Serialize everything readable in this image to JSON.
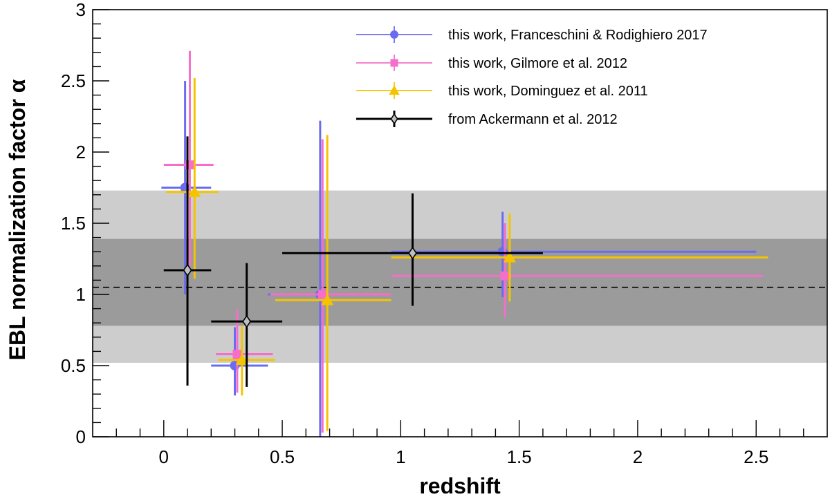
{
  "chart_data": {
    "type": "scatter",
    "title": "",
    "xlabel": "redshift",
    "ylabel": "EBL normalization factor α",
    "xlim": [
      -0.3,
      2.8
    ],
    "ylim": [
      0,
      3
    ],
    "xticks": [
      "0",
      "0.5",
      "1",
      "1.5",
      "2",
      "2.5"
    ],
    "yticks": [
      "0",
      "0.5",
      "1",
      "1.5",
      "2",
      "2.5",
      "3"
    ],
    "legend_position": "top-right",
    "reference_line": {
      "y": 1.05,
      "style": "dashed"
    },
    "bands": [
      {
        "name": "outer band",
        "y_low": 0.52,
        "y_high": 1.73,
        "color": "#cdcdcd"
      },
      {
        "name": "inner band",
        "y_low": 0.78,
        "y_high": 1.39,
        "color": "#9b9b9b"
      }
    ],
    "series": [
      {
        "name": "this work, Franceschini & Rodighiero 2017",
        "color": "#6a6cf0",
        "marker": "circle",
        "points": [
          {
            "x": 0.09,
            "y": 1.75,
            "xlo": -0.01,
            "xhi": 0.2,
            "ylo": 1.0,
            "yhi": 2.5
          },
          {
            "x": 0.3,
            "y": 0.5,
            "xlo": 0.2,
            "xhi": 0.44,
            "ylo": 0.29,
            "yhi": 0.77
          },
          {
            "x": 0.66,
            "y": 1.0,
            "xlo": 0.44,
            "xhi": 0.96,
            "ylo": 0.0,
            "yhi": 2.22
          },
          {
            "x": 1.43,
            "y": 1.3,
            "xlo": 0.96,
            "xhi": 2.5,
            "ylo": 0.98,
            "yhi": 1.58
          }
        ]
      },
      {
        "name": "this work, Gilmore et al. 2012",
        "color": "#f56ec9",
        "marker": "square",
        "points": [
          {
            "x": 0.11,
            "y": 1.91,
            "xlo": 0.0,
            "xhi": 0.21,
            "ylo": 1.2,
            "yhi": 2.71
          },
          {
            "x": 0.31,
            "y": 0.58,
            "xlo": 0.22,
            "xhi": 0.46,
            "ylo": 0.31,
            "yhi": 0.89
          },
          {
            "x": 0.67,
            "y": 1.0,
            "xlo": 0.45,
            "xhi": 0.96,
            "ylo": 0.03,
            "yhi": 2.09
          },
          {
            "x": 1.44,
            "y": 1.13,
            "xlo": 0.96,
            "xhi": 2.53,
            "ylo": 0.84,
            "yhi": 1.5
          }
        ]
      },
      {
        "name": "this work, Dominguez et al. 2011",
        "color": "#f5c400",
        "marker": "triangle",
        "points": [
          {
            "x": 0.13,
            "y": 1.72,
            "xlo": 0.01,
            "xhi": 0.23,
            "ylo": 1.11,
            "yhi": 2.52
          },
          {
            "x": 0.33,
            "y": 0.54,
            "xlo": 0.23,
            "xhi": 0.47,
            "ylo": 0.29,
            "yhi": 0.78
          },
          {
            "x": 0.69,
            "y": 0.96,
            "xlo": 0.47,
            "xhi": 0.96,
            "ylo": 0.04,
            "yhi": 2.12
          },
          {
            "x": 1.46,
            "y": 1.26,
            "xlo": 0.96,
            "xhi": 2.55,
            "ylo": 0.95,
            "yhi": 1.57
          }
        ]
      },
      {
        "name": "from Ackermann et al. 2012",
        "color": "#000000",
        "marker": "diamond",
        "points": [
          {
            "x": 0.1,
            "y": 1.17,
            "xlo": 0.0,
            "xhi": 0.2,
            "ylo": 0.36,
            "yhi": 2.11
          },
          {
            "x": 0.35,
            "y": 0.81,
            "xlo": 0.2,
            "xhi": 0.5,
            "ylo": 0.35,
            "yhi": 1.22
          },
          {
            "x": 1.05,
            "y": 1.29,
            "xlo": 0.5,
            "xhi": 1.6,
            "ylo": 0.92,
            "yhi": 1.71
          }
        ]
      }
    ]
  }
}
